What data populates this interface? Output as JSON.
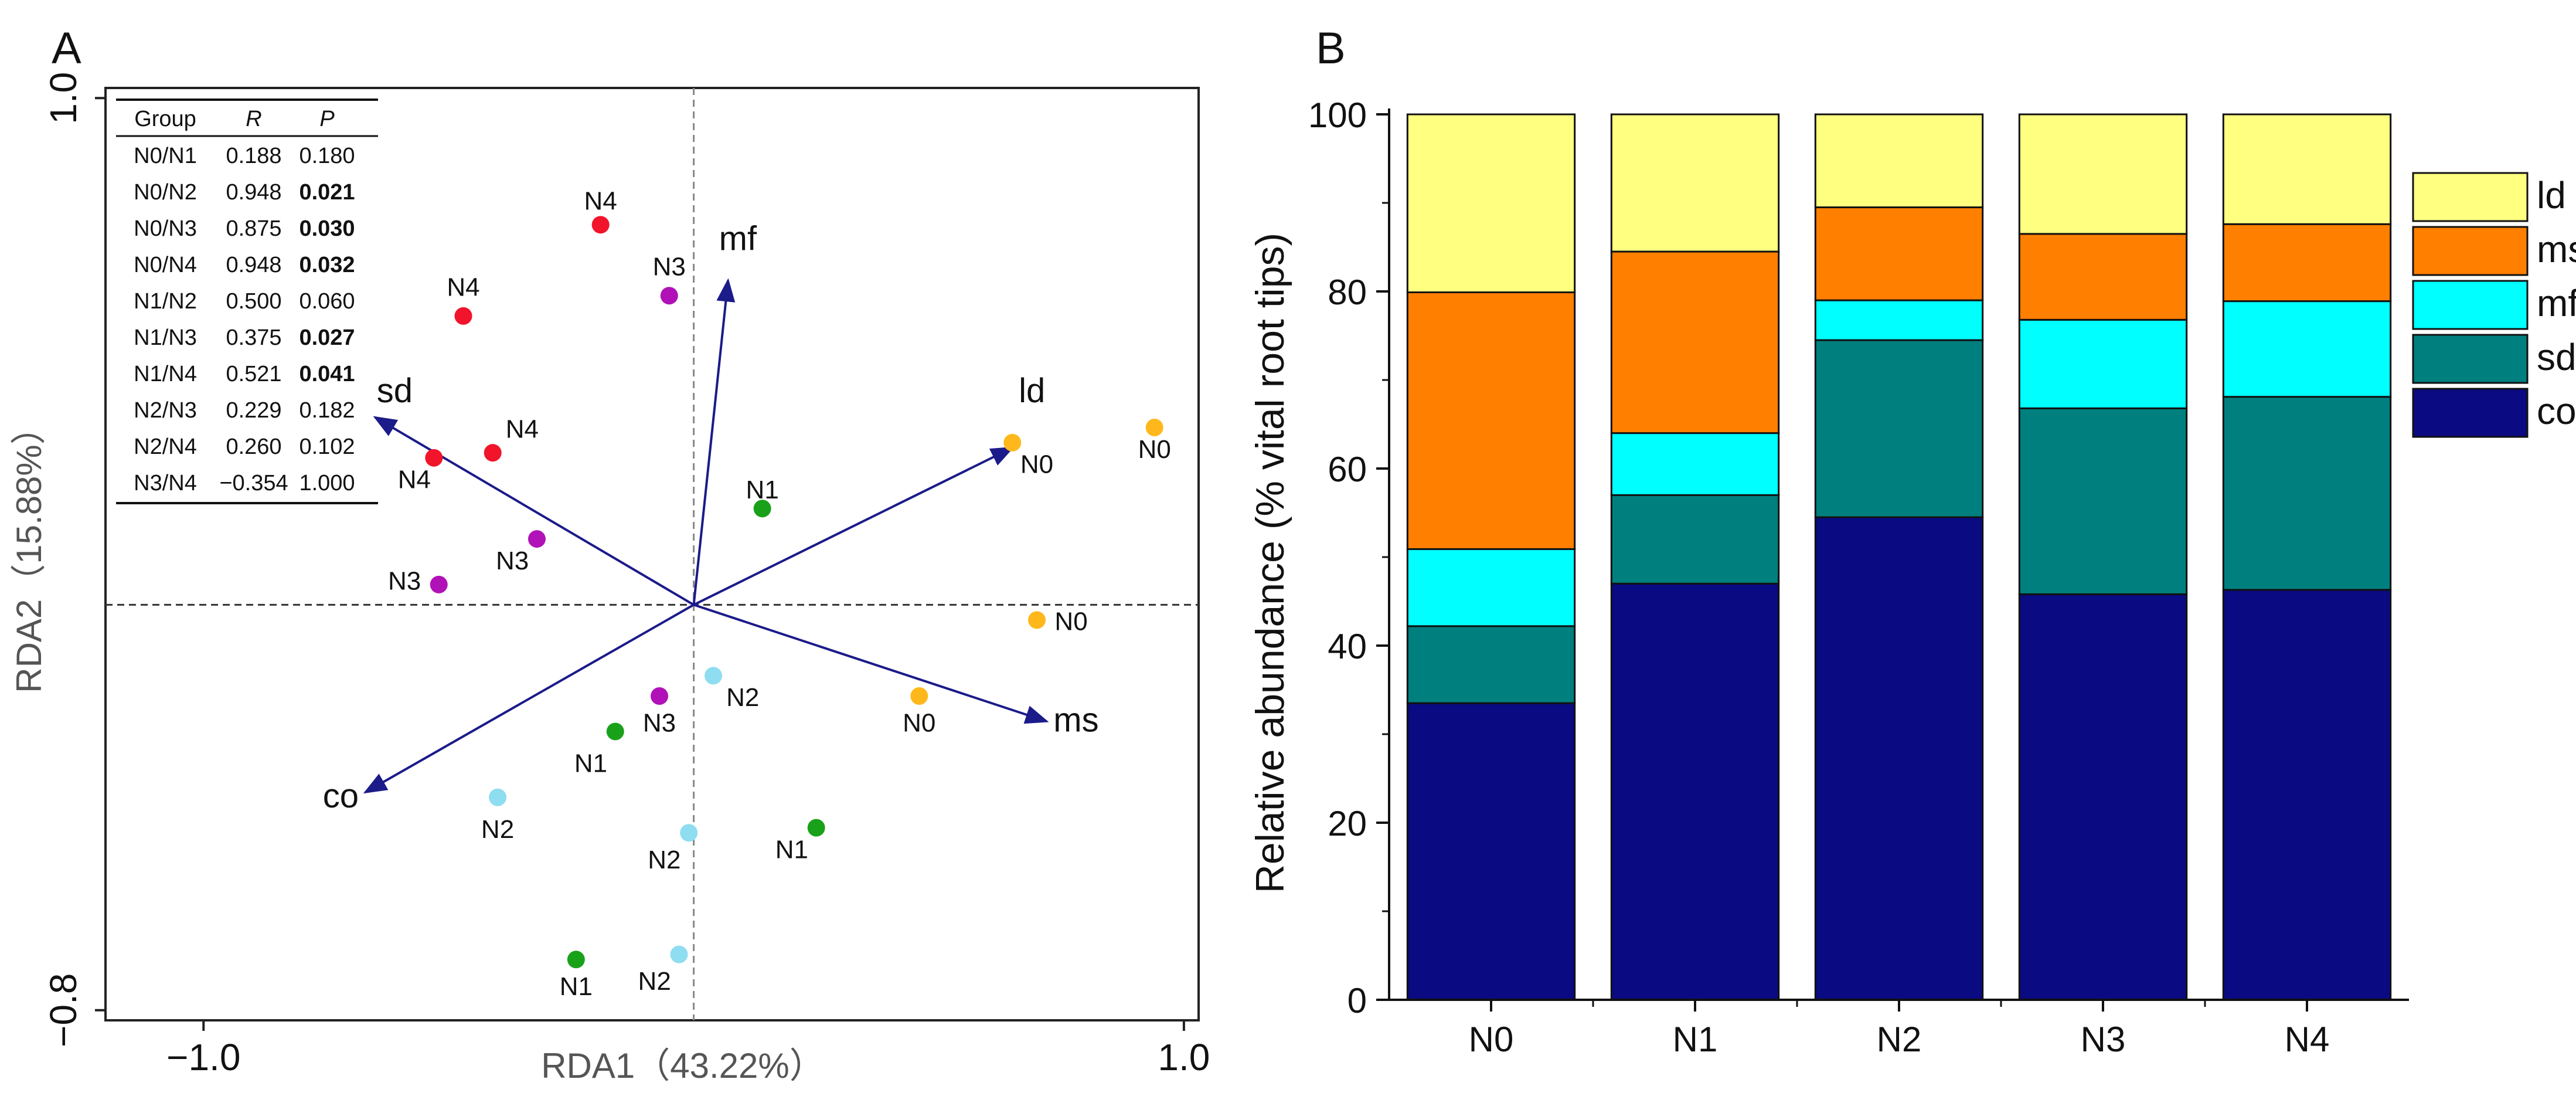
{
  "panel_a": {
    "label": "A",
    "table": {
      "headers": [
        "Group",
        "R",
        "P"
      ],
      "rows": [
        {
          "group": "N0/N1",
          "r": "0.188",
          "p": "0.180",
          "sig": false
        },
        {
          "group": "N0/N2",
          "r": "0.948",
          "p": "0.021",
          "sig": true
        },
        {
          "group": "N0/N3",
          "r": "0.875",
          "p": "0.030",
          "sig": true
        },
        {
          "group": "N0/N4",
          "r": "0.948",
          "p": "0.032",
          "sig": true
        },
        {
          "group": "N1/N2",
          "r": "0.500",
          "p": "0.060",
          "sig": false
        },
        {
          "group": "N1/N3",
          "r": "0.375",
          "p": "0.027",
          "sig": true
        },
        {
          "group": "N1/N4",
          "r": "0.521",
          "p": "0.041",
          "sig": true
        },
        {
          "group": "N2/N3",
          "r": "0.229",
          "p": "0.182",
          "sig": false
        },
        {
          "group": "N2/N4",
          "r": "0.260",
          "p": "0.102",
          "sig": false
        },
        {
          "group": "N3/N4",
          "r": "−0.354",
          "p": "1.000",
          "sig": false
        }
      ]
    }
  },
  "panel_b": {
    "label": "B"
  },
  "chart_data": [
    {
      "type": "scatter",
      "xlabel": "RDA1（43.22%）",
      "ylabel": "RDA2（15.88%）",
      "xlim": [
        -1.2,
        1.03
      ],
      "ylim": [
        -0.82,
        1.02
      ],
      "x_ticks": [
        {
          "v": -1.0,
          "label": "−1.0"
        },
        {
          "v": 1.0,
          "label": "1.0"
        }
      ],
      "y_ticks": [
        {
          "v": 1.0,
          "label": "1.0"
        },
        {
          "v": -0.8,
          "label": "−0.8"
        }
      ],
      "reference_lines": {
        "x": 0,
        "y": 0,
        "style": "dashed"
      },
      "groups": [
        {
          "name": "N0",
          "color": "#FFB81C"
        },
        {
          "name": "N1",
          "color": "#1AA11A"
        },
        {
          "name": "N2",
          "color": "#8EDDF0"
        },
        {
          "name": "N3",
          "color": "#B012B8"
        },
        {
          "name": "N4",
          "color": "#F2142B"
        }
      ],
      "points": [
        {
          "group": "N4",
          "x": -0.19,
          "y": 0.75
        },
        {
          "group": "N4",
          "x": -0.47,
          "y": 0.57
        },
        {
          "group": "N3",
          "x": -0.05,
          "y": 0.61
        },
        {
          "group": "N4",
          "x": -0.53,
          "y": 0.29
        },
        {
          "group": "N4",
          "x": -0.41,
          "y": 0.3
        },
        {
          "group": "N3",
          "x": -0.32,
          "y": 0.13
        },
        {
          "group": "N3",
          "x": -0.52,
          "y": 0.04
        },
        {
          "group": "N1",
          "x": 0.14,
          "y": 0.19
        },
        {
          "group": "N0",
          "x": 0.65,
          "y": 0.32
        },
        {
          "group": "N0",
          "x": 0.94,
          "y": 0.35
        },
        {
          "group": "N0",
          "x": 0.7,
          "y": -0.03
        },
        {
          "group": "N0",
          "x": 0.46,
          "y": -0.18
        },
        {
          "group": "N2",
          "x": 0.04,
          "y": -0.14
        },
        {
          "group": "N3",
          "x": -0.07,
          "y": -0.18
        },
        {
          "group": "N1",
          "x": -0.16,
          "y": -0.25
        },
        {
          "group": "N2",
          "x": -0.4,
          "y": -0.38
        },
        {
          "group": "N2",
          "x": -0.01,
          "y": -0.45
        },
        {
          "group": "N1",
          "x": 0.25,
          "y": -0.44
        },
        {
          "group": "N1",
          "x": -0.24,
          "y": -0.7
        },
        {
          "group": "N2",
          "x": -0.03,
          "y": -0.69
        }
      ],
      "point_labels": [
        {
          "text": "N4",
          "x": -0.19,
          "y": 0.78
        },
        {
          "text": "N4",
          "x": -0.47,
          "y": 0.61
        },
        {
          "text": "N3",
          "x": -0.05,
          "y": 0.65
        },
        {
          "text": "N4",
          "x": -0.35,
          "y": 0.33
        },
        {
          "text": "N4",
          "x": -0.57,
          "y": 0.23
        },
        {
          "text": "N3",
          "x": -0.37,
          "y": 0.07
        },
        {
          "text": "N3",
          "x": -0.59,
          "y": 0.03
        },
        {
          "text": "N1",
          "x": 0.14,
          "y": 0.21
        },
        {
          "text": "N0",
          "x": 0.7,
          "y": 0.26
        },
        {
          "text": "N0",
          "x": 0.94,
          "y": 0.29
        },
        {
          "text": "N0",
          "x": 0.77,
          "y": -0.05
        },
        {
          "text": "N0",
          "x": 0.46,
          "y": -0.25
        },
        {
          "text": "N2",
          "x": 0.1,
          "y": -0.2
        },
        {
          "text": "N3",
          "x": -0.07,
          "y": -0.25
        },
        {
          "text": "N1",
          "x": -0.21,
          "y": -0.33
        },
        {
          "text": "N2",
          "x": -0.4,
          "y": -0.46
        },
        {
          "text": "N2",
          "x": -0.06,
          "y": -0.52
        },
        {
          "text": "N1",
          "x": 0.2,
          "y": -0.5
        },
        {
          "text": "N1",
          "x": -0.24,
          "y": -0.77
        },
        {
          "text": "N2",
          "x": -0.08,
          "y": -0.76
        }
      ],
      "vectors": [
        {
          "name": "ld",
          "x": 0.65,
          "y": 0.31,
          "lx": 0.69,
          "ly": 0.4
        },
        {
          "name": "ms",
          "x": 0.72,
          "y": -0.23,
          "lx": 0.78,
          "ly": -0.25
        },
        {
          "name": "mf",
          "x": 0.07,
          "y": 0.64,
          "lx": 0.09,
          "ly": 0.7
        },
        {
          "name": "sd",
          "x": -0.65,
          "y": 0.37,
          "lx": -0.61,
          "ly": 0.4
        },
        {
          "name": "co",
          "x": -0.67,
          "y": -0.37,
          "lx": -0.72,
          "ly": -0.4
        }
      ],
      "vector_color": "#1B1B8A"
    },
    {
      "type": "bar",
      "stacked": true,
      "categories": [
        "N0",
        "N1",
        "N2",
        "N3",
        "N4"
      ],
      "ylabel": "Relative abundance (% vital root tips)",
      "ylim": [
        0,
        100
      ],
      "y_ticks": [
        0,
        20,
        40,
        60,
        80,
        100
      ],
      "legend_position": "right",
      "series": [
        {
          "name": "co",
          "color": "#0A0A82",
          "values": [
            33.5,
            47.0,
            54.5,
            45.8,
            46.3
          ]
        },
        {
          "name": "sd",
          "color": "#007F7F",
          "values": [
            8.7,
            10.0,
            20.0,
            21.0,
            21.8
          ]
        },
        {
          "name": "mf",
          "color": "#00FFFF",
          "values": [
            8.7,
            7.0,
            4.5,
            10.0,
            10.8
          ]
        },
        {
          "name": "ms",
          "color": "#FF7F00",
          "values": [
            29.0,
            20.5,
            10.5,
            9.7,
            8.7
          ]
        },
        {
          "name": "ld",
          "color": "#FFFF80",
          "values": [
            20.1,
            15.5,
            10.5,
            13.5,
            12.4
          ]
        }
      ],
      "legend_order": [
        "ld",
        "ms",
        "mf",
        "sd",
        "co"
      ]
    }
  ]
}
